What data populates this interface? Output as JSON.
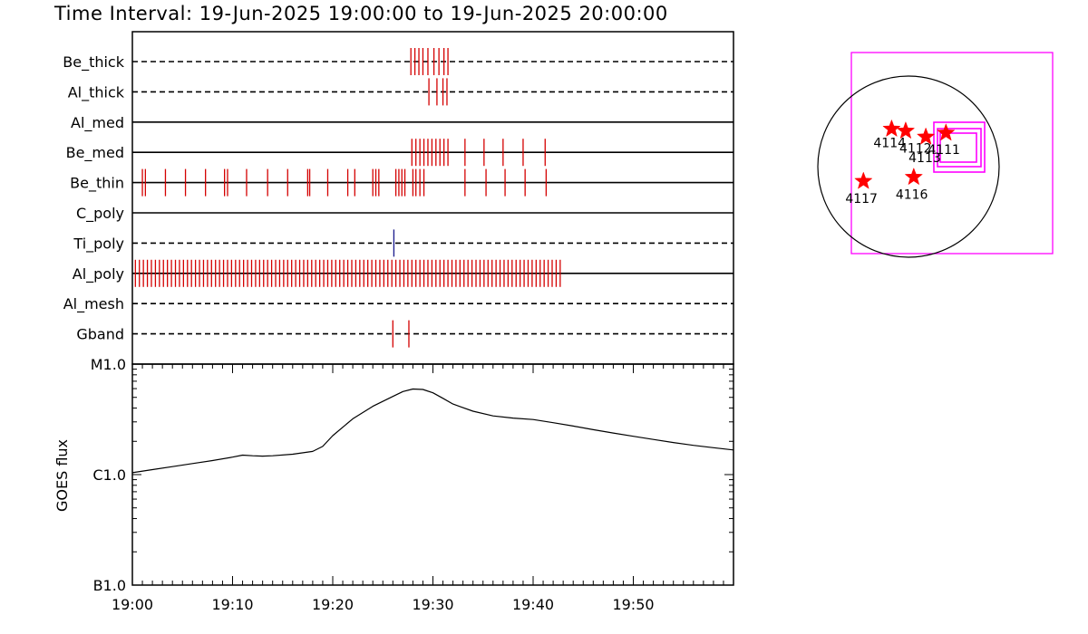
{
  "title": "Time Interval: 19-Jun-2025 19:00:00 to 19-Jun-2025 20:00:00",
  "chart_data": [
    {
      "type": "event-raster",
      "x_range_minutes": [
        0,
        60
      ],
      "colors": {
        "events": "#d40000",
        "alt_event": "#1a1a8c",
        "axes": "#000000"
      },
      "channels": [
        {
          "name": "Be_thick",
          "line": "dashed",
          "events": [
            27.8,
            28.2,
            28.6,
            29.0,
            29.5,
            30.1,
            30.6,
            31.1,
            31.5
          ]
        },
        {
          "name": "Al_thick",
          "line": "dashed",
          "events": [
            29.6,
            30.4,
            31.0,
            31.4
          ]
        },
        {
          "name": "Al_med",
          "line": "solid",
          "events": []
        },
        {
          "name": "Be_med",
          "line": "solid",
          "events": [
            27.9,
            28.3,
            28.7,
            29.1,
            29.5,
            29.9,
            30.3,
            30.7,
            31.1,
            31.5,
            33.2,
            35.1,
            37.0,
            39.0,
            41.2
          ]
        },
        {
          "name": "Be_thin",
          "line": "solid",
          "events": [
            1.0,
            1.3,
            3.3,
            5.3,
            7.3,
            9.2,
            9.5,
            11.4,
            13.5,
            15.5,
            17.5,
            17.7,
            19.5,
            21.5,
            22.2,
            24.0,
            24.3,
            24.6,
            26.3,
            26.6,
            26.9,
            27.2,
            28.0,
            28.3,
            28.7,
            29.1,
            33.2,
            35.3,
            37.2,
            39.2,
            41.3
          ]
        },
        {
          "name": "C_poly",
          "line": "solid",
          "events": []
        },
        {
          "name": "Ti_poly",
          "line": "dashed",
          "events": [],
          "alt_events": [
            26.1
          ]
        },
        {
          "name": "Al_poly",
          "line": "solid",
          "events": [
            0.3,
            0.7,
            1.1,
            1.5,
            1.9,
            2.3,
            2.7,
            3.1,
            3.5,
            3.9,
            4.3,
            4.7,
            5.1,
            5.5,
            5.9,
            6.3,
            6.7,
            7.1,
            7.5,
            7.9,
            8.3,
            8.7,
            9.1,
            9.5,
            9.9,
            10.3,
            10.7,
            11.1,
            11.5,
            11.9,
            12.3,
            12.7,
            13.1,
            13.5,
            13.9,
            14.3,
            14.7,
            15.1,
            15.5,
            15.9,
            16.3,
            16.7,
            17.1,
            17.5,
            17.9,
            18.3,
            18.7,
            19.1,
            19.5,
            19.9,
            20.3,
            20.7,
            21.1,
            21.5,
            21.9,
            22.3,
            22.7,
            23.1,
            23.5,
            23.9,
            24.3,
            24.7,
            25.1,
            25.5,
            25.9,
            26.3,
            26.7,
            27.1,
            27.5,
            27.9,
            28.3,
            28.7,
            29.1,
            29.5,
            29.9,
            30.3,
            30.7,
            31.1,
            31.5,
            31.9,
            32.3,
            32.7,
            33.1,
            33.5,
            33.9,
            34.3,
            34.7,
            35.1,
            35.5,
            35.9,
            36.3,
            36.7,
            37.1,
            37.5,
            37.9,
            38.3,
            38.7,
            39.1,
            39.5,
            39.9,
            40.3,
            40.7,
            41.1,
            41.5,
            41.9,
            42.3,
            42.7
          ]
        },
        {
          "name": "Al_mesh",
          "line": "dashed",
          "events": []
        },
        {
          "name": "Gband",
          "line": "dashed",
          "events": [
            26.0,
            27.6
          ]
        }
      ]
    },
    {
      "type": "line",
      "ylabel": "GOES flux",
      "y_scale": "log",
      "yticks": [
        "M1.0",
        "C1.0",
        "B1.0"
      ],
      "ylim": [
        1e-07,
        1e-05
      ],
      "x_range_minutes": [
        0,
        60
      ],
      "xticks": [
        "19:00",
        "19:10",
        "19:20",
        "19:30",
        "19:40",
        "19:50"
      ],
      "series": [
        {
          "x": [
            0,
            2,
            4,
            6,
            8,
            10,
            11,
            12,
            13,
            14,
            16,
            18,
            19,
            20,
            22,
            24,
            26,
            27,
            28,
            29,
            30,
            31,
            32,
            34,
            36,
            38,
            40,
            42,
            44,
            46,
            48,
            50,
            52,
            54,
            56,
            58,
            60
          ],
          "y": [
            1.04e-06,
            1.11e-06,
            1.18e-06,
            1.26e-06,
            1.34e-06,
            1.44e-06,
            1.5e-06,
            1.48e-06,
            1.47e-06,
            1.48e-06,
            1.53e-06,
            1.62e-06,
            1.8e-06,
            2.25e-06,
            3.2e-06,
            4.15e-06,
            5.1e-06,
            5.65e-06,
            5.95e-06,
            5.9e-06,
            5.5e-06,
            4.9e-06,
            4.35e-06,
            3.75e-06,
            3.4e-06,
            3.25e-06,
            3.15e-06,
            2.95e-06,
            2.75e-06,
            2.55e-06,
            2.38e-06,
            2.22e-06,
            2.08e-06,
            1.95e-06,
            1.84e-06,
            1.75e-06,
            1.67e-06
          ]
        }
      ]
    },
    {
      "type": "scatter",
      "description_labels": [
        "4114",
        "4112",
        "4113",
        "4111",
        "4116",
        "4117"
      ],
      "colors": {
        "stars": "#ff0000",
        "boxes": "#ff00ff",
        "disk": "#000000"
      },
      "points": [
        {
          "label": "4114",
          "sx": 0.2,
          "sy": 0.38
        },
        {
          "label": "4112",
          "sx": 0.27,
          "sy": 0.39
        },
        {
          "label": "4113",
          "sx": 0.37,
          "sy": 0.42
        },
        {
          "label": "4111",
          "sx": 0.47,
          "sy": 0.4
        },
        {
          "label": "4116",
          "sx": 0.31,
          "sy": 0.62
        },
        {
          "label": "4117",
          "sx": 0.06,
          "sy": 0.64
        }
      ]
    }
  ]
}
